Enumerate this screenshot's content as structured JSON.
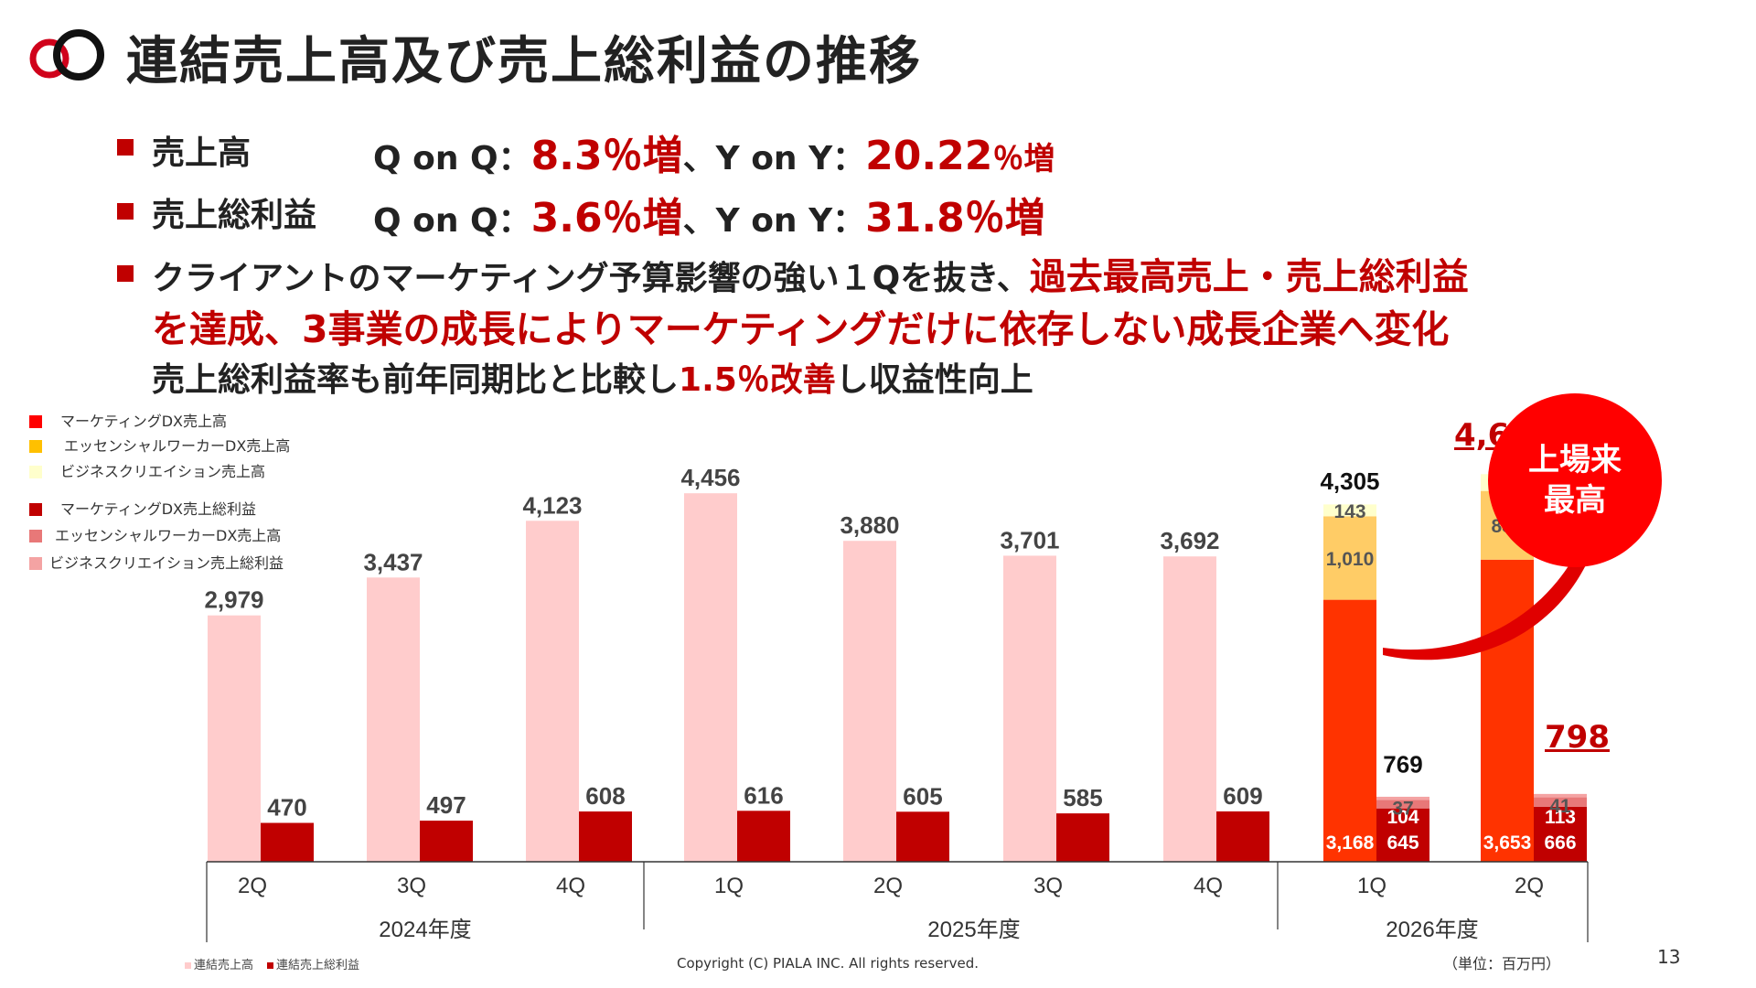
{
  "title": "連結売上高及び売上総利益の推移",
  "bullets": {
    "sales": {
      "label": "売上高",
      "qoq_label": "Q on Q：",
      "qoq_value": "8.3％増",
      "sep": "、Y on Y：",
      "yoy_value": "20.22",
      "yoy_suffix": "％増"
    },
    "gross": {
      "label": "売上総利益",
      "qoq_label": "Q on Q：",
      "qoq_value": "3.6％増",
      "sep": "、Y on Y：",
      "yoy_value": "31.8％増"
    },
    "client": {
      "line1_black": "クライアントのマーケティング予算影響の強い１Qを抜き、",
      "line1_red": "過去最高売上・売上総利益",
      "line2_red": "を達成、3事業の成長によりマーケティングだけに依存しない成長企業へ変化",
      "line3_a": "売上総利益率も前年同期比と比較し",
      "line3_red": "1.5％改善",
      "line3_b": "し収益性向上"
    }
  },
  "legend": [
    {
      "label": "マーケティングDX売上高",
      "color": "#ff0000"
    },
    {
      "label": "エッセンシャルワーカーDX売上高",
      "color": "#ffc000"
    },
    {
      "label": "ビジネスクリエイション売上高",
      "color": "#ffffcc"
    },
    {
      "label": "マーケティングDX売上総利益",
      "color": "#c00000"
    },
    {
      "label": "エッセンシャルワーカーDX売上高",
      "color": "#e87878"
    },
    {
      "label": "ビジネスクリエイション売上総利益",
      "color": "#f4a3a3"
    }
  ],
  "badge": "上場来\n最高",
  "footer": {
    "legend_sales": "連結売上高",
    "legend_gross": "連結売上総利益",
    "copyright": "Copyright (C) PIALA INC. All rights reserved.",
    "unit": "（単位：百万円）",
    "page": "13"
  },
  "colors": {
    "accent_red": "#c00000",
    "sales_pink": "#ffcccc",
    "gross_dark": "#c00000",
    "mkt_sales": "#ff3300",
    "ess_sales": "#ffcc66",
    "biz_sales": "#ffffcc",
    "mkt_gross": "#c00000",
    "ess_gross": "#e87878",
    "biz_gross": "#f4a3a3"
  },
  "chart_data": {
    "type": "bar",
    "categories": [
      "2Q",
      "3Q",
      "4Q",
      "1Q",
      "2Q",
      "3Q",
      "4Q",
      "1Q",
      "2Q"
    ],
    "fiscal_years": [
      {
        "label": "2024年度",
        "count": 3
      },
      {
        "label": "2025年度",
        "count": 4
      },
      {
        "label": "2026年度",
        "count": 2
      }
    ],
    "series": [
      {
        "name": "連結売上高",
        "values": [
          2979,
          3437,
          4123,
          4456,
          3880,
          3701,
          3692,
          4305,
          4665
        ]
      },
      {
        "name": "連結売上総利益",
        "values": [
          470,
          497,
          608,
          616,
          605,
          585,
          609,
          769,
          798
        ]
      }
    ],
    "value_labels": {
      "sales": [
        "2,979",
        "3,437",
        "4,123",
        "4,456",
        "3,880",
        "3,701",
        "3,692",
        "4,305",
        "4,665"
      ],
      "gross": [
        "470",
        "497",
        "608",
        "616",
        "605",
        "585",
        "609",
        "769",
        "798"
      ]
    },
    "breakdown": [
      {
        "index": 7,
        "sales": [
          {
            "name": "マーケティングDX売上高",
            "value": 3168,
            "label": "3,168"
          },
          {
            "name": "エッセンシャルワーカーDX売上高",
            "value": 1010,
            "label": "1,010"
          },
          {
            "name": "ビジネスクリエイション売上高",
            "value": 143,
            "label": "143"
          }
        ],
        "gross": [
          {
            "name": "マーケティングDX売上総利益",
            "value": 645,
            "label": "645"
          },
          {
            "name": "エッセンシャルワーカーDX売上高",
            "value": 104,
            "label": "104"
          },
          {
            "name": "ビジネスクリエイション売上総利益",
            "value": 37,
            "label": "37"
          }
        ]
      },
      {
        "index": 8,
        "sales": [
          {
            "name": "マーケティングDX売上高",
            "value": 3653,
            "label": "3,653"
          },
          {
            "name": "エッセンシャルワーカーDX売上高",
            "value": 831,
            "label": "831"
          },
          {
            "name": "ビジネスクリエイション売上高",
            "value": 203,
            "label": "203"
          }
        ],
        "gross": [
          {
            "name": "マーケティングDX売上総利益",
            "value": 666,
            "label": "666"
          },
          {
            "name": "エッセンシャルワーカーDX売上高",
            "value": 113,
            "label": "113"
          },
          {
            "name": "ビジネスクリエイション売上総利益",
            "value": 41,
            "label": "41"
          }
        ]
      }
    ],
    "ylim": [
      0,
      4800
    ],
    "grid": false,
    "legend_position": "top-left"
  }
}
